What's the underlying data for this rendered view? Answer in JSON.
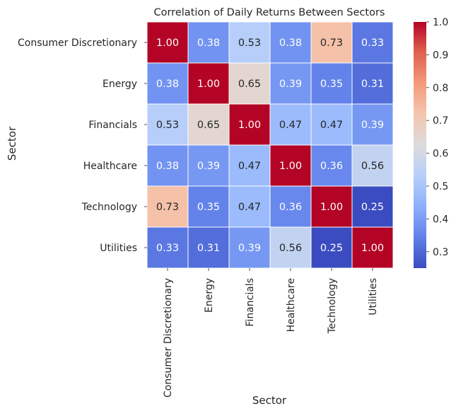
{
  "chart_data": {
    "type": "heatmap",
    "title": "Correlation of Daily Returns Between Sectors",
    "xlabel": "Sector",
    "ylabel": "Sector",
    "rows": [
      "Consumer Discretionary",
      "Energy",
      "Financials",
      "Healthcare",
      "Technology",
      "Utilities"
    ],
    "columns": [
      "Consumer Discretionary",
      "Energy",
      "Financials",
      "Healthcare",
      "Technology",
      "Utilities"
    ],
    "values": [
      [
        1.0,
        0.38,
        0.53,
        0.38,
        0.73,
        0.33
      ],
      [
        0.38,
        1.0,
        0.65,
        0.39,
        0.35,
        0.31
      ],
      [
        0.53,
        0.65,
        1.0,
        0.47,
        0.47,
        0.39
      ],
      [
        0.38,
        0.39,
        0.47,
        1.0,
        0.36,
        0.56
      ],
      [
        0.73,
        0.35,
        0.47,
        0.36,
        1.0,
        0.25
      ],
      [
        0.33,
        0.31,
        0.39,
        0.56,
        0.25,
        1.0
      ]
    ],
    "value_format": "0.00",
    "colormap": "coolwarm",
    "colorbar": {
      "range": [
        0.25,
        1.0
      ],
      "ticks": [
        1.0,
        0.9,
        0.8,
        0.7,
        0.6,
        0.5,
        0.4,
        0.3
      ],
      "tick_labels": [
        "1.0",
        "0.9",
        "0.8",
        "0.7",
        "0.6",
        "0.5",
        "0.4",
        "0.3"
      ]
    },
    "cell_border_color": "#ffffff"
  }
}
